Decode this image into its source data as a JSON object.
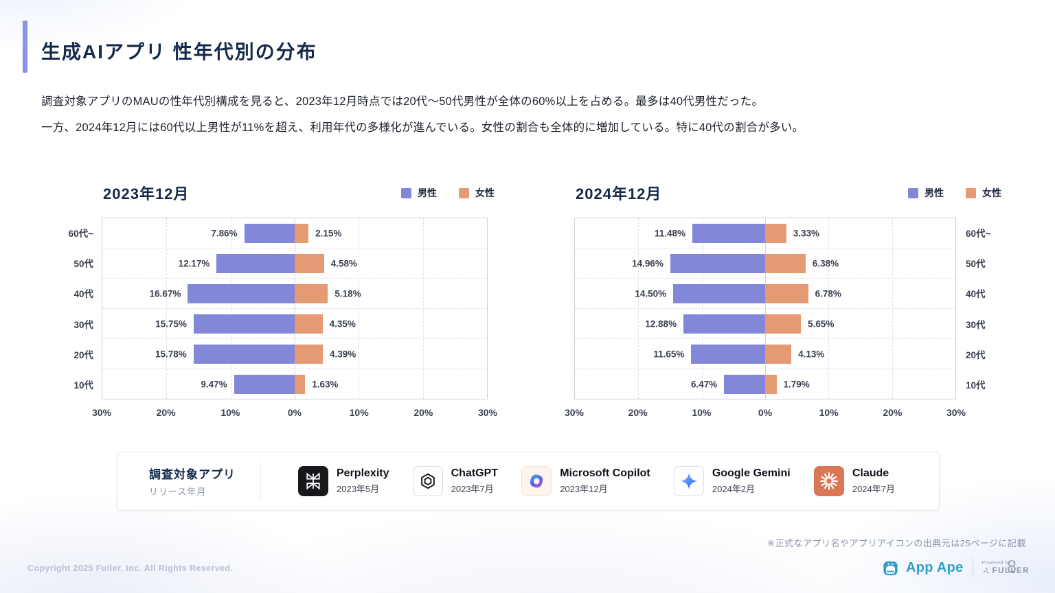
{
  "slide": {
    "title": "生成AIアプリ 性年代別の分布",
    "body_line1": "調査対象アプリのMAUの性年代別構成を見ると、2023年12月時点では20代〜50代男性が全体の60%以上を占める。最多は40代男性だった。",
    "body_line2": "一方、2024年12月には60代以上男性が11%を超え、利用年代の多様化が進んでいる。女性の割合も全体的に増加している。特に40代の割合が多い。",
    "note": "※正式なアプリ名やアプリアイコンの出典元は25ページに記載",
    "copyright": "Copyright 2025 Fuller, Inc. All Rights Reserved.",
    "page_number": "8",
    "brand": {
      "name": "App Ape",
      "powered_by": "Powered by",
      "company": "FULLER"
    }
  },
  "legend": {
    "male": "男性",
    "female": "女性"
  },
  "colors": {
    "male": "#8287D8",
    "female": "#E49A73",
    "accent": "#8A93E8",
    "title": "#14294B",
    "brand_teal": "#2F9FC9",
    "claude_orange": "#D97757"
  },
  "chart_data": [
    {
      "type": "bar",
      "subtype": "diverging-horizontal",
      "title": "2023年12月",
      "categories": [
        "60代~",
        "50代",
        "40代",
        "30代",
        "20代",
        "10代"
      ],
      "series": [
        {
          "name": "男性",
          "values": [
            7.86,
            12.17,
            16.67,
            15.75,
            15.78,
            9.47
          ],
          "labels": [
            "7.86%",
            "12.17%",
            "16.67%",
            "15.75%",
            "15.78%",
            "9.47%"
          ]
        },
        {
          "name": "女性",
          "values": [
            2.15,
            4.58,
            5.18,
            4.35,
            4.39,
            1.63
          ],
          "labels": [
            "2.15%",
            "4.58%",
            "5.18%",
            "4.35%",
            "4.39%",
            "1.63%"
          ]
        }
      ],
      "xlim": [
        -30,
        30
      ],
      "x_ticks": [
        "30%",
        "20%",
        "10%",
        "0%",
        "10%",
        "20%",
        "30%"
      ],
      "unit": "%",
      "grid": true,
      "legend_position": "top-right",
      "category_axis_side": "left"
    },
    {
      "type": "bar",
      "subtype": "diverging-horizontal",
      "title": "2024年12月",
      "categories": [
        "60代~",
        "50代",
        "40代",
        "30代",
        "20代",
        "10代"
      ],
      "series": [
        {
          "name": "男性",
          "values": [
            11.48,
            14.96,
            14.5,
            12.88,
            11.65,
            6.47
          ],
          "labels": [
            "11.48%",
            "14.96%",
            "14.50%",
            "12.88%",
            "11.65%",
            "6.47%"
          ]
        },
        {
          "name": "女性",
          "values": [
            3.33,
            6.38,
            6.78,
            5.65,
            4.13,
            1.79
          ],
          "labels": [
            "3.33%",
            "6.38%",
            "6.78%",
            "5.65%",
            "4.13%",
            "1.79%"
          ]
        }
      ],
      "xlim": [
        -30,
        30
      ],
      "x_ticks": [
        "30%",
        "20%",
        "10%",
        "0%",
        "10%",
        "20%",
        "30%"
      ],
      "unit": "%",
      "grid": true,
      "legend_position": "top-right",
      "category_axis_side": "right"
    }
  ],
  "apps": {
    "label_title": "調査対象アプリ",
    "label_sub": "リリース年月",
    "items": [
      {
        "name": "Perplexity",
        "release": "2023年5月",
        "icon": "perplexity-icon"
      },
      {
        "name": "ChatGPT",
        "release": "2023年7月",
        "icon": "chatgpt-icon"
      },
      {
        "name": "Microsoft Copilot",
        "release": "2023年12月",
        "icon": "microsoft-copilot-icon"
      },
      {
        "name": "Google Gemini",
        "release": "2024年2月",
        "icon": "google-gemini-icon"
      },
      {
        "name": "Claude",
        "release": "2024年7月",
        "icon": "claude-icon"
      }
    ]
  }
}
